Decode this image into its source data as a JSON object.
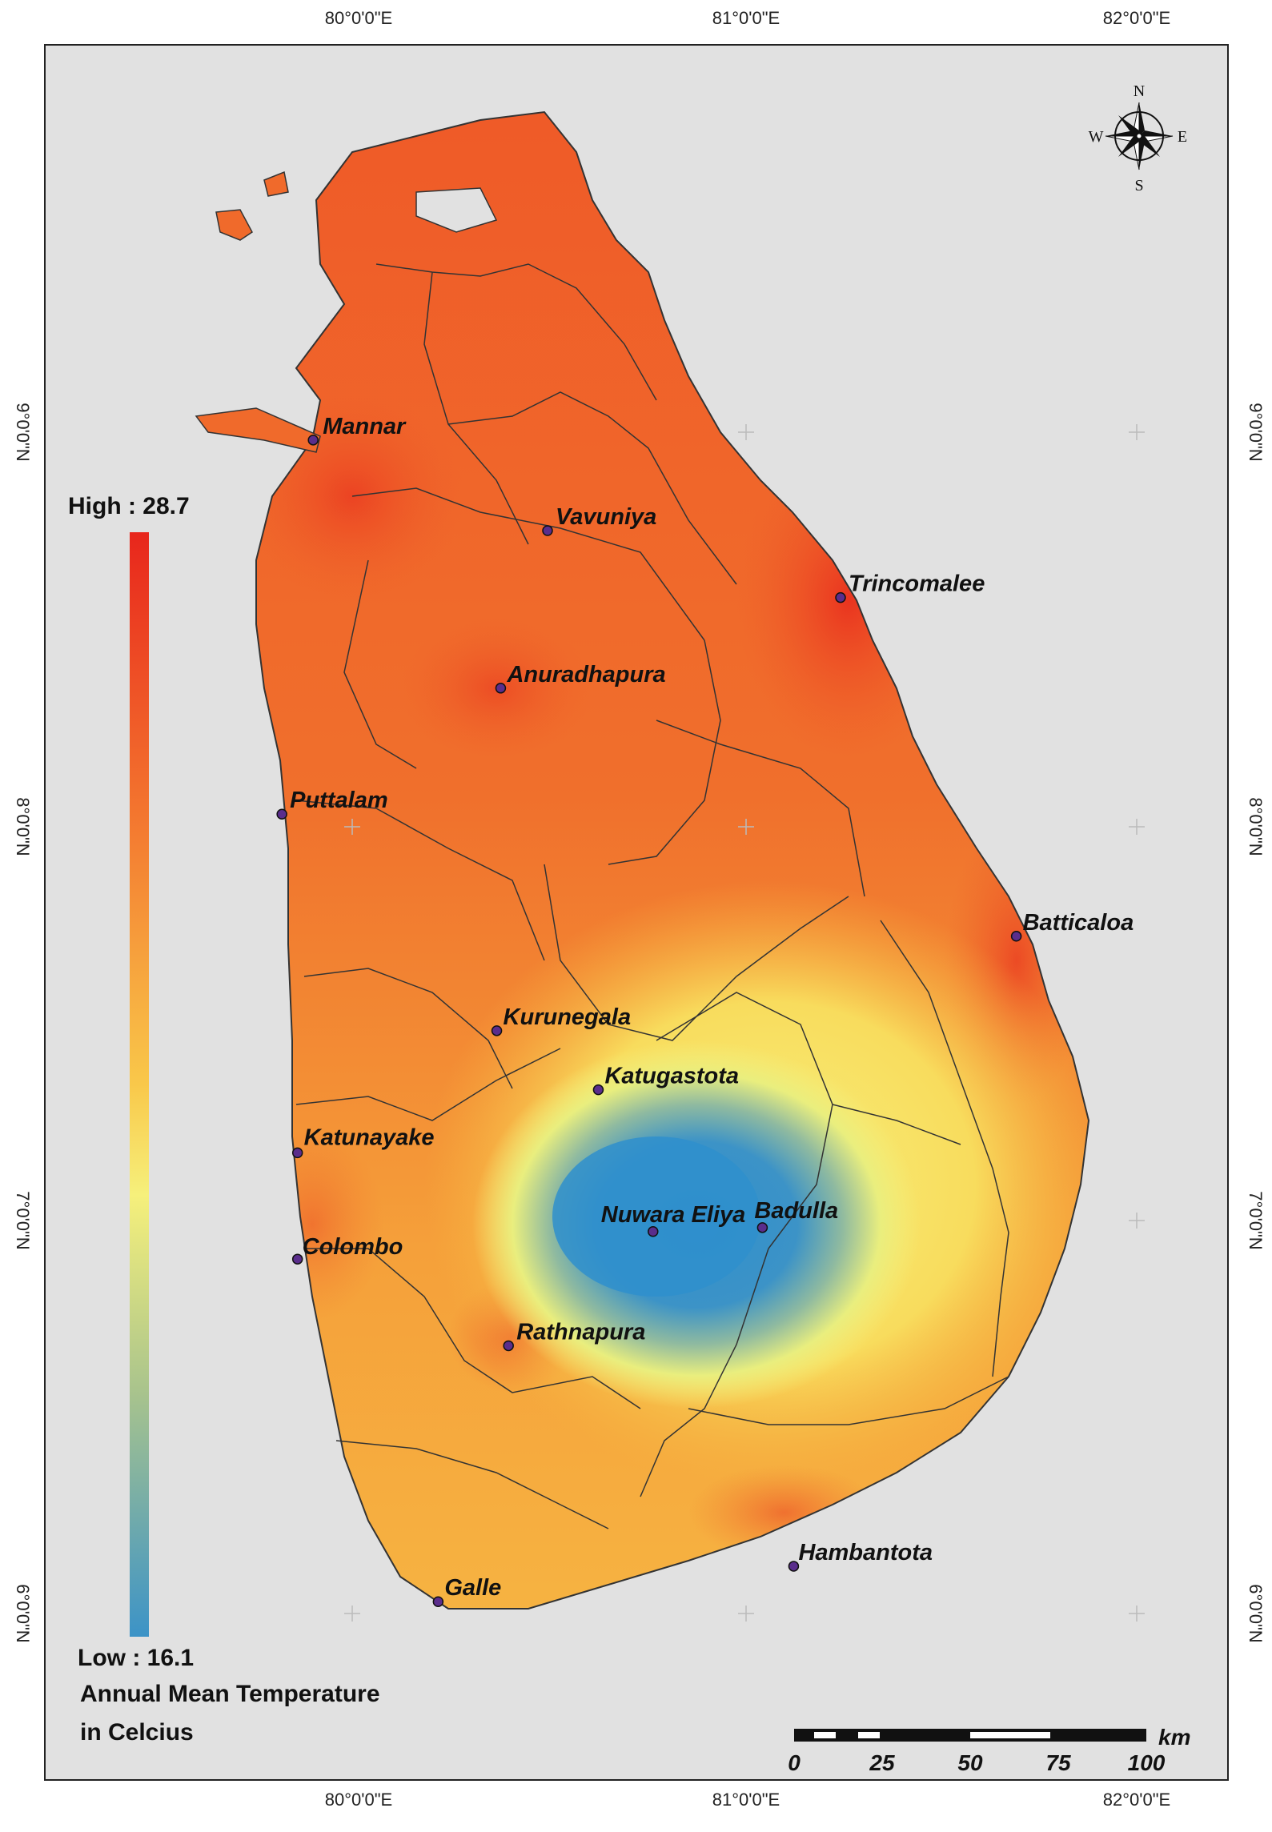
{
  "coordinates": {
    "longitude_labels": [
      "80°0'0\"E",
      "81°0'0\"E",
      "82°0'0\"E"
    ],
    "latitude_labels": [
      "9°0'0\"N",
      "8°0'0\"N",
      "7°0'0\"N",
      "6°0'0\"N"
    ]
  },
  "compass": {
    "n": "N",
    "s": "S",
    "e": "E",
    "w": "W"
  },
  "cities": [
    {
      "name": "Mannar",
      "lon": 79.9,
      "lat": 8.98
    },
    {
      "name": "Vavuniya",
      "lon": 80.5,
      "lat": 8.75
    },
    {
      "name": "Trincomalee",
      "lon": 81.25,
      "lat": 8.58
    },
    {
      "name": "Anuradhapura",
      "lon": 80.38,
      "lat": 8.35
    },
    {
      "name": "Puttalam",
      "lon": 79.82,
      "lat": 8.03
    },
    {
      "name": "Batticaloa",
      "lon": 81.7,
      "lat": 7.72
    },
    {
      "name": "Kurunegala",
      "lon": 80.37,
      "lat": 7.48
    },
    {
      "name": "Katugastota",
      "lon": 80.63,
      "lat": 7.33
    },
    {
      "name": "Katunayake",
      "lon": 79.86,
      "lat": 7.17
    },
    {
      "name": "Nuwara Eliya",
      "lon": 80.77,
      "lat": 6.97
    },
    {
      "name": "Badulla",
      "lon": 81.05,
      "lat": 6.98
    },
    {
      "name": "Colombo",
      "lon": 79.86,
      "lat": 6.9
    },
    {
      "name": "Rathnapura",
      "lon": 80.4,
      "lat": 6.68
    },
    {
      "name": "Hambantota",
      "lon": 81.13,
      "lat": 6.12
    },
    {
      "name": "Galle",
      "lon": 80.22,
      "lat": 6.03
    }
  ],
  "legend": {
    "high": "High : 28.7",
    "low": "Low : 16.1",
    "title_line1": "Annual Mean Temperature",
    "title_line2": "in Celcius",
    "high_value": 28.7,
    "low_value": 16.1,
    "colors": {
      "high": "#e8261c",
      "mid": "#f6f07b",
      "low": "#3c93c7"
    }
  },
  "scalebar": {
    "unit": "km",
    "ticks": [
      "0",
      "25",
      "50",
      "75",
      "100"
    ]
  }
}
